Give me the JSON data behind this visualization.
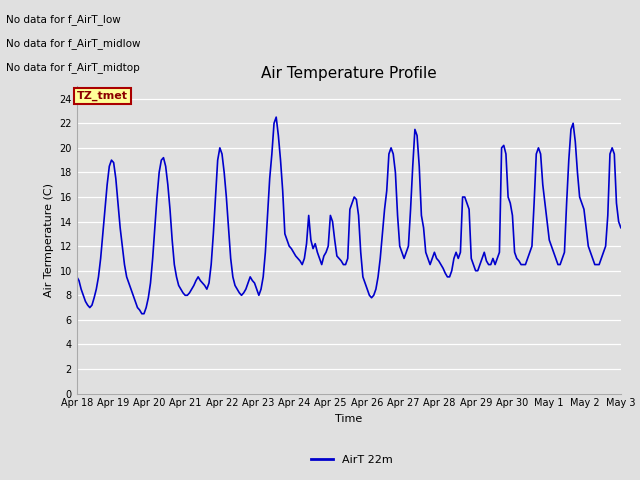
{
  "title": "Air Temperature Profile",
  "xlabel": "Time",
  "ylabel": "Air Termperature (C)",
  "line_color": "#0000cc",
  "line_width": 1.2,
  "ylim": [
    0,
    25
  ],
  "yticks": [
    0,
    2,
    4,
    6,
    8,
    10,
    12,
    14,
    16,
    18,
    20,
    22,
    24
  ],
  "bg_color": "#e0e0e0",
  "no_data_texts": [
    "No data for f_AirT_low",
    "No data for f_AirT_midlow",
    "No data for f_AirT_midtop"
  ],
  "tz_label": "TZ_tmet",
  "legend_label": "AirT 22m",
  "x_tick_labels": [
    "Apr 18",
    "Apr 19",
    "Apr 20",
    "Apr 21",
    "Apr 22",
    "Apr 23",
    "Apr 24",
    "Apr 25",
    "Apr 26",
    "Apr 27",
    "Apr 28",
    "Apr 29",
    "Apr 30",
    "May 1",
    "May 2",
    "May 3"
  ],
  "temp_data": [
    9.5,
    9.2,
    8.5,
    8.0,
    7.5,
    7.2,
    7.0,
    7.2,
    7.8,
    8.5,
    9.5,
    11.0,
    13.0,
    15.0,
    17.0,
    18.5,
    19.0,
    18.8,
    17.5,
    15.5,
    13.5,
    12.0,
    10.5,
    9.5,
    9.0,
    8.5,
    8.0,
    7.5,
    7.0,
    6.8,
    6.5,
    6.5,
    7.0,
    7.8,
    9.0,
    11.0,
    13.5,
    16.0,
    18.0,
    19.0,
    19.2,
    18.5,
    17.0,
    15.0,
    12.5,
    10.5,
    9.5,
    8.8,
    8.5,
    8.2,
    8.0,
    8.0,
    8.2,
    8.5,
    8.8,
    9.2,
    9.5,
    9.2,
    9.0,
    8.8,
    8.5,
    9.0,
    10.5,
    13.0,
    16.0,
    19.0,
    20.0,
    19.5,
    18.0,
    16.0,
    13.5,
    11.0,
    9.5,
    8.8,
    8.5,
    8.2,
    8.0,
    8.2,
    8.5,
    9.0,
    9.5,
    9.2,
    9.0,
    8.5,
    8.0,
    8.5,
    9.5,
    11.5,
    14.5,
    17.5,
    19.5,
    22.0,
    22.5,
    21.0,
    19.0,
    16.5,
    13.0,
    12.5,
    12.0,
    11.8,
    11.5,
    11.2,
    11.0,
    10.8,
    10.5,
    11.0,
    12.2,
    14.5,
    12.5,
    11.8,
    12.2,
    11.5,
    11.0,
    10.5,
    11.2,
    11.5,
    12.0,
    14.5,
    14.0,
    12.5,
    11.2,
    11.0,
    10.8,
    10.5,
    10.5,
    11.0,
    15.0,
    15.5,
    16.0,
    15.8,
    14.5,
    11.5,
    9.5,
    9.0,
    8.5,
    8.0,
    7.8,
    8.0,
    8.5,
    9.5,
    11.0,
    13.0,
    15.0,
    16.5,
    19.5,
    20.0,
    19.5,
    18.0,
    14.5,
    12.0,
    11.5,
    11.0,
    11.5,
    12.0,
    15.0,
    18.5,
    21.5,
    21.0,
    18.5,
    14.5,
    13.5,
    11.5,
    11.0,
    10.5,
    11.0,
    11.5,
    11.0,
    10.8,
    10.5,
    10.2,
    9.8,
    9.5,
    9.5,
    10.0,
    11.0,
    11.5,
    11.0,
    11.5,
    16.0,
    16.0,
    15.5,
    15.0,
    11.0,
    10.5,
    10.0,
    10.0,
    10.5,
    11.0,
    11.5,
    10.8,
    10.5,
    10.5,
    11.0,
    10.5,
    11.0,
    11.5,
    20.0,
    20.2,
    19.5,
    16.0,
    15.5,
    14.5,
    11.5,
    11.0,
    10.8,
    10.5,
    10.5,
    10.5,
    11.0,
    11.5,
    12.0,
    15.5,
    19.5,
    20.0,
    19.5,
    17.0,
    15.5,
    14.0,
    12.5,
    12.0,
    11.5,
    11.0,
    10.5,
    10.5,
    11.0,
    11.5,
    15.5,
    19.0,
    21.5,
    22.0,
    20.5,
    18.0,
    16.0,
    15.5,
    15.0,
    13.5,
    12.0,
    11.5,
    11.0,
    10.5,
    10.5,
    10.5,
    11.0,
    11.5,
    12.0,
    14.5,
    19.5,
    20.0,
    19.5,
    15.5,
    14.0,
    13.5
  ]
}
